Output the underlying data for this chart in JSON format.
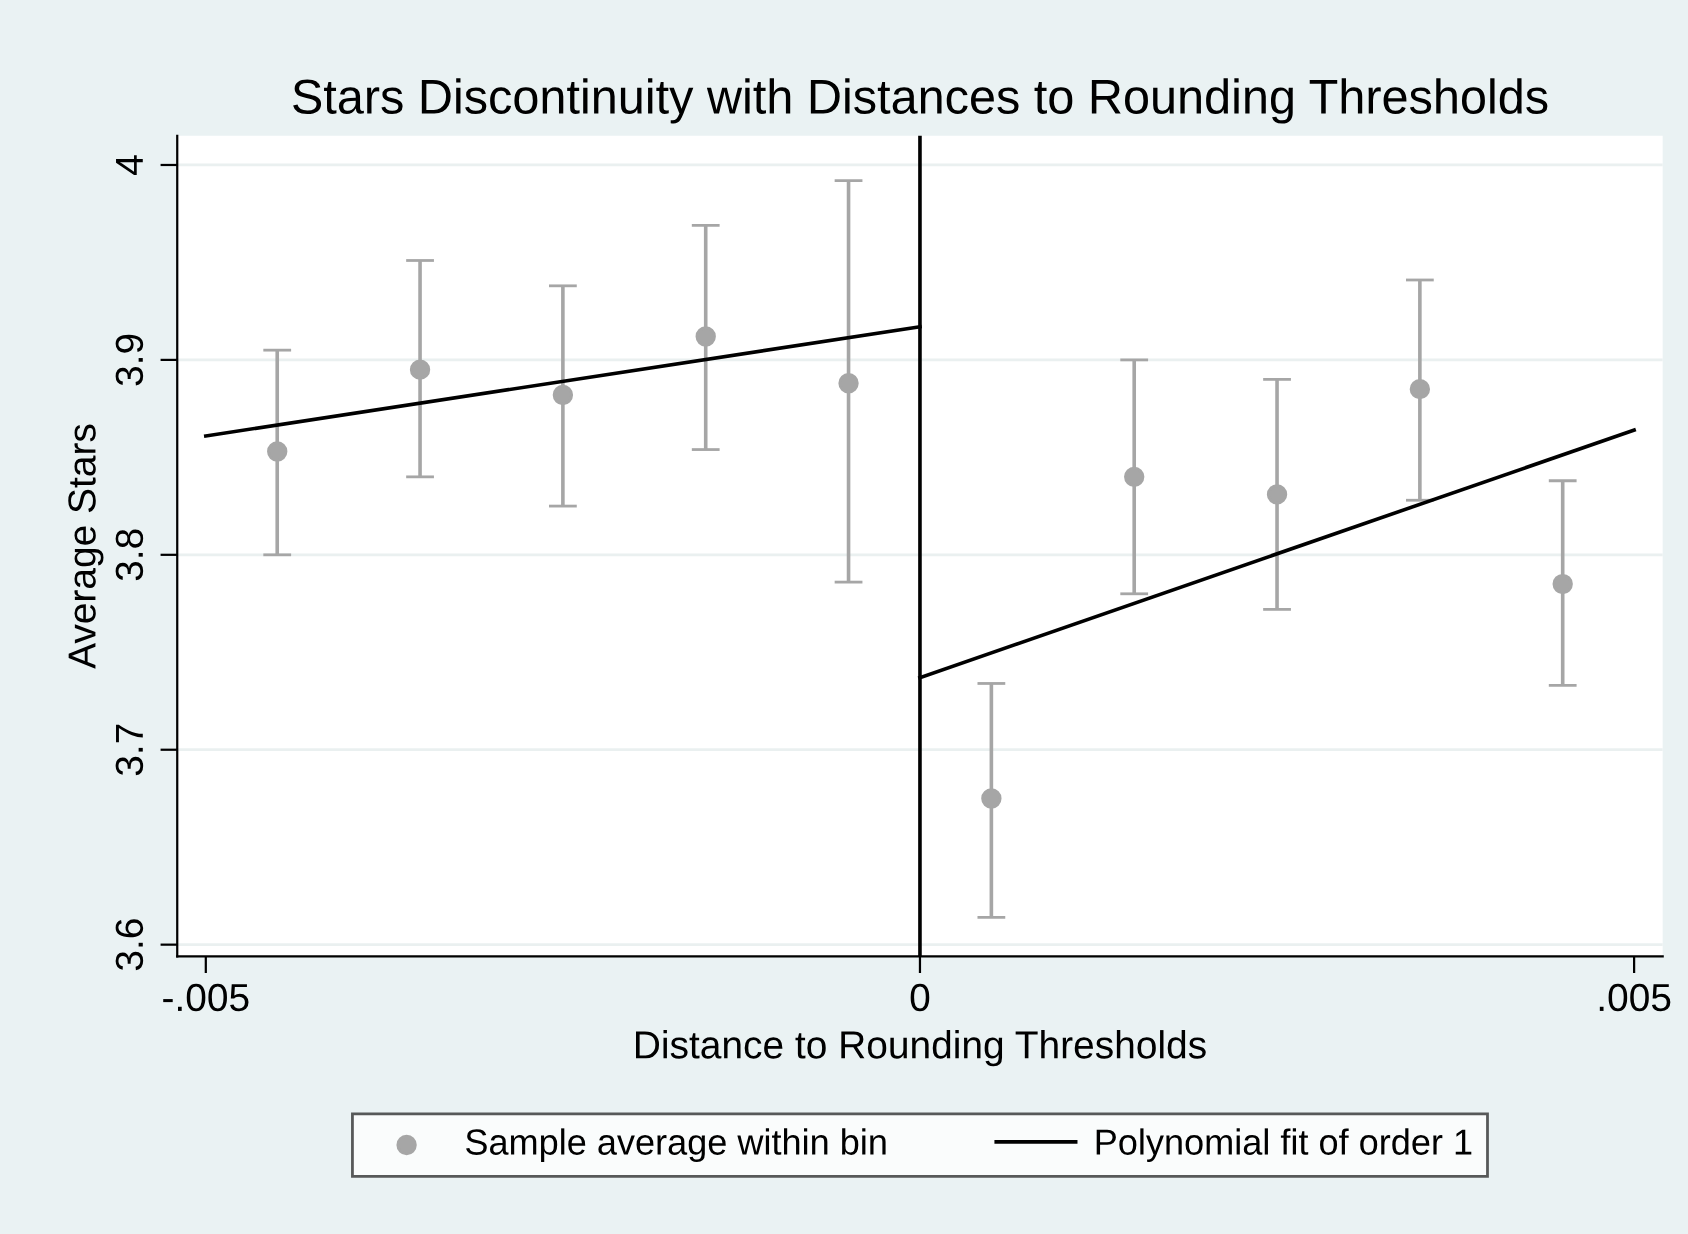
{
  "chart_data": {
    "type": "scatter",
    "title": "Stars Discontinuity with Distances to Rounding Thresholds",
    "xlabel": "Distance to Rounding Thresholds",
    "ylabel": "Average Stars",
    "series": [
      {
        "type": "scatter",
        "name": "Sample average within bin",
        "color": "#a6a6a6",
        "marker": "circle",
        "x": [
          -0.0045,
          -0.0035,
          -0.0025,
          -0.0015,
          -0.0005,
          0.0005,
          0.0015,
          0.0025,
          0.0035,
          0.0045
        ],
        "values": [
          3.853,
          3.895,
          3.882,
          3.912,
          3.888,
          3.675,
          3.84,
          3.831,
          3.885,
          3.785
        ],
        "errors": [
          [
            3.8,
            3.905
          ],
          [
            3.84,
            3.951
          ],
          [
            3.825,
            3.938
          ],
          [
            3.854,
            3.969
          ],
          [
            3.786,
            3.992
          ],
          [
            3.614,
            3.734
          ],
          [
            3.78,
            3.9
          ],
          [
            3.772,
            3.89
          ],
          [
            3.828,
            3.941
          ],
          [
            3.733,
            3.838
          ]
        ]
      },
      {
        "type": "line",
        "name": "Polynomial fit of order 1",
        "color": "#000000",
        "x": [
          -0.005,
          0
        ],
        "values": [
          3.861,
          3.917
        ]
      },
      {
        "type": "line",
        "color": "#000000",
        "x": [
          0,
          0.005
        ],
        "values": [
          3.737,
          3.864
        ]
      }
    ],
    "ref_lines": [
      {
        "axis": "x",
        "value": 0,
        "color": "#000000"
      }
    ],
    "xlim": [
      -0.0052,
      0.0052
    ],
    "xticks": [
      {
        "value": -0.005,
        "label": "-.005"
      },
      0,
      {
        "value": 0.005,
        "label": ".005"
      }
    ],
    "ylim": [
      3.594,
      4.015
    ],
    "yticks": [
      3.6,
      3.7,
      3.8,
      3.9,
      4
    ],
    "grid": "y",
    "legend": "bottom"
  }
}
